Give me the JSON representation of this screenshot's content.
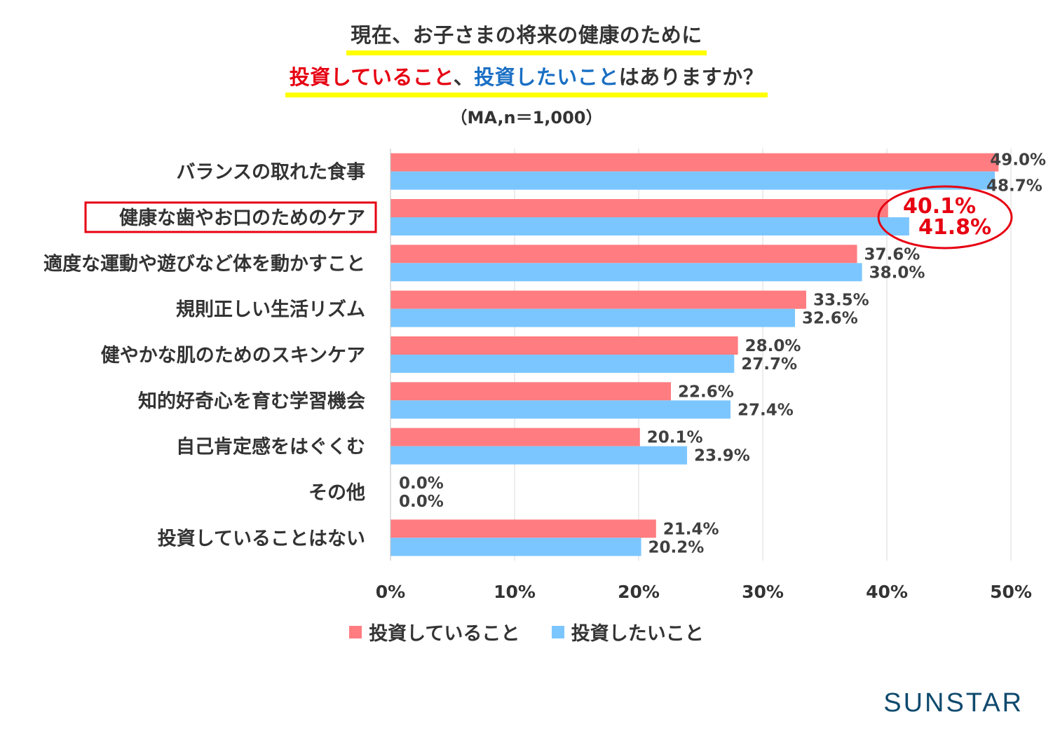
{
  "header": {
    "title_line1": "現在、お子さまの将来の健康のために",
    "title_line2_part1": "投資していること",
    "title_line2_sep": "、",
    "title_line2_part2": "投資したいこと",
    "title_line2_part3": "はありますか？",
    "subtitle": "（MA,n＝1,000）"
  },
  "colors": {
    "series1": "#ff7c80",
    "series2": "#7cc6ff",
    "highlight": "#e60012",
    "grid": "#d9d9d9",
    "logo": "#0f4a6e"
  },
  "chart_data": {
    "type": "bar",
    "orientation": "horizontal",
    "categories": [
      "バランスの取れた食事",
      "健康な歯やお口のためのケア",
      "適度な運動や遊びなど体を動かすこと",
      "規則正しい生活リズム",
      "健やかな肌のためのスキンケア",
      "知的好奇心を育む学習機会",
      "自己肯定感をはぐくむ",
      "その他",
      "投資していることはない"
    ],
    "series": [
      {
        "name": "投資していること",
        "values": [
          49.0,
          40.1,
          37.6,
          33.5,
          28.0,
          22.6,
          20.1,
          0.0,
          21.4
        ]
      },
      {
        "name": "投資したいこと",
        "values": [
          48.7,
          41.8,
          38.0,
          32.6,
          27.7,
          27.4,
          23.9,
          0.0,
          20.2
        ]
      }
    ],
    "value_labels": [
      [
        "49.0%",
        "40.1%",
        "37.6%",
        "33.5%",
        "28.0%",
        "22.6%",
        "20.1%",
        "0.0%",
        "21.4%"
      ],
      [
        "48.7%",
        "41.8%",
        "38.0%",
        "32.6%",
        "27.7%",
        "27.4%",
        "23.9%",
        "0.0%",
        "20.2%"
      ]
    ],
    "highlighted_category": "健康な歯やお口のためのケア",
    "xlim": [
      0,
      50
    ],
    "x_ticks": [
      "0%",
      "10%",
      "20%",
      "30%",
      "40%",
      "50%"
    ],
    "grid": true,
    "legend_position": "bottom"
  },
  "logo": "SUNSTAR"
}
